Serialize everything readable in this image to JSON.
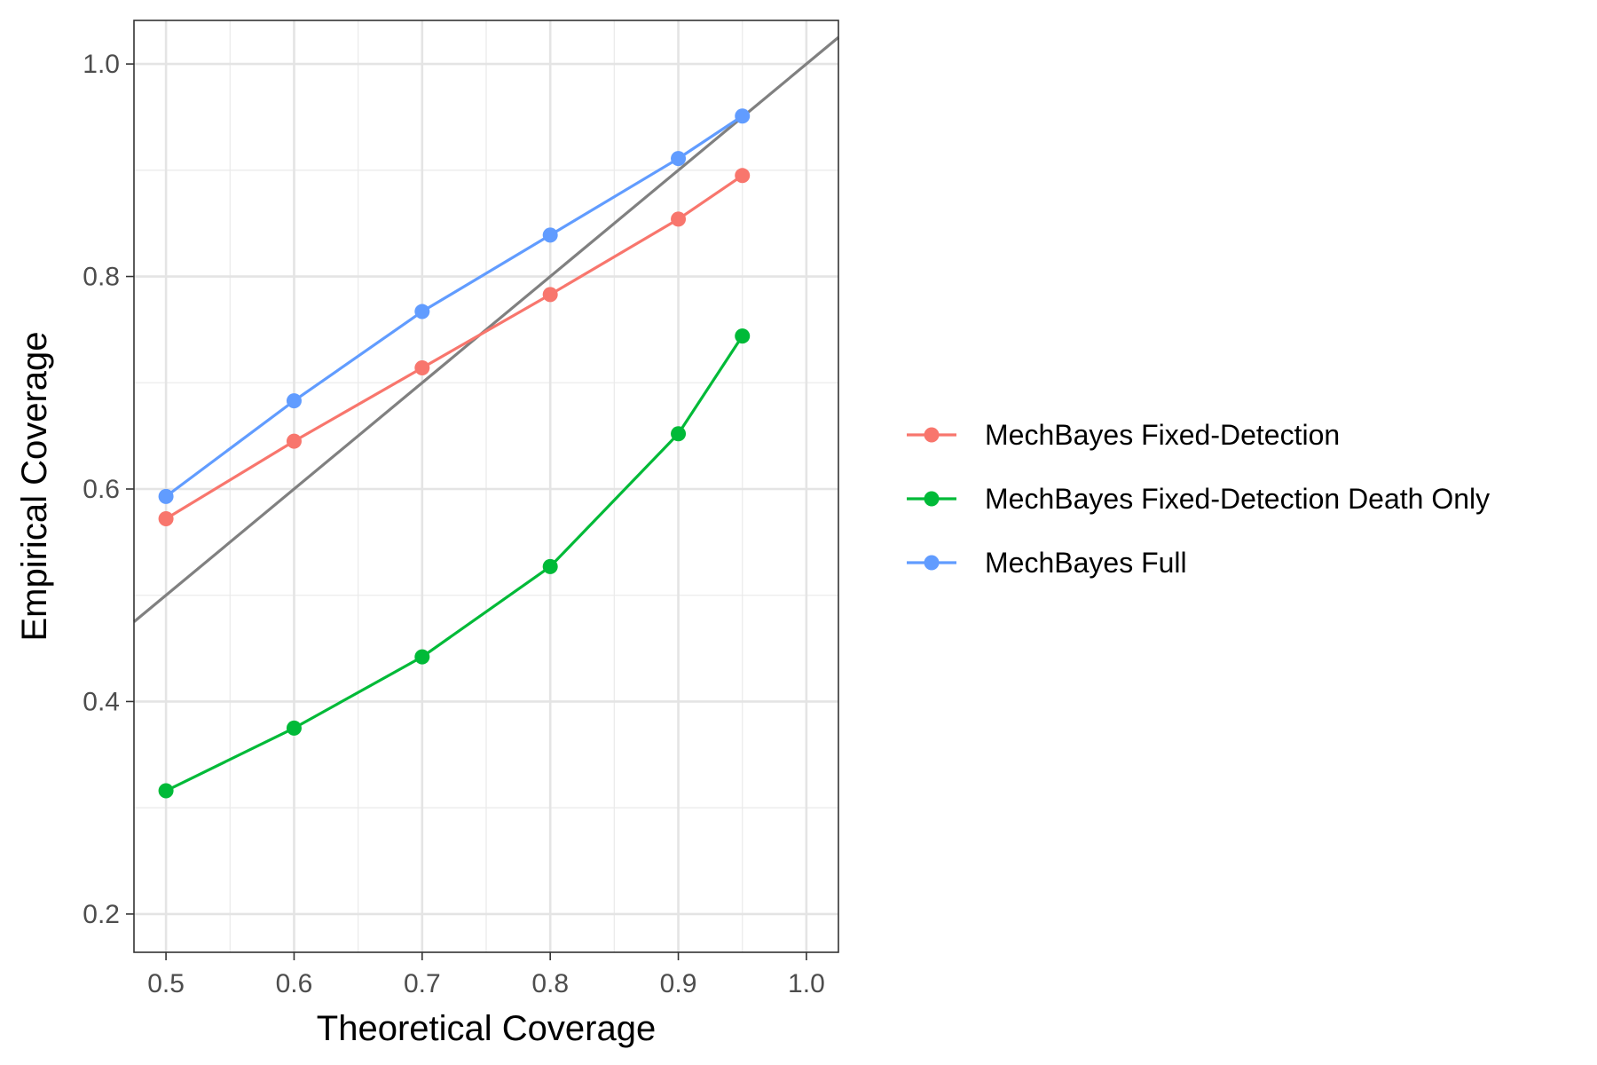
{
  "chart_data": {
    "type": "line",
    "title": "",
    "xlabel": "Theoretical Coverage",
    "ylabel": "Empirical Coverage",
    "xlim": [
      0.475,
      1.025
    ],
    "ylim": [
      0.164,
      1.041
    ],
    "x_ticks": [
      0.5,
      0.6,
      0.7,
      0.8,
      0.9,
      1.0
    ],
    "x_tick_labels": [
      "0.5",
      "0.6",
      "0.7",
      "0.8",
      "0.9",
      "1.0"
    ],
    "y_ticks": [
      0.2,
      0.4,
      0.6,
      0.8,
      1.0
    ],
    "y_tick_labels": [
      "0.2",
      "0.4",
      "0.6",
      "0.8",
      "1.0"
    ],
    "grid": true,
    "legend_position": "right",
    "reference_line": {
      "slope": 1,
      "intercept": 0,
      "color": "#808080"
    },
    "x": [
      0.5,
      0.6,
      0.7,
      0.8,
      0.9,
      0.95
    ],
    "series": [
      {
        "name": "MechBayes Fixed-Detection",
        "color": "#F8766D",
        "values": [
          0.572,
          0.645,
          0.714,
          0.783,
          0.854,
          0.895
        ]
      },
      {
        "name": "MechBayes Fixed-Detection Death Only",
        "color": "#00BA38",
        "values": [
          0.316,
          0.375,
          0.442,
          0.527,
          0.652,
          0.744
        ]
      },
      {
        "name": "MechBayes Full",
        "color": "#619CFF",
        "values": [
          0.593,
          0.683,
          0.767,
          0.839,
          0.911,
          0.951
        ]
      }
    ]
  }
}
